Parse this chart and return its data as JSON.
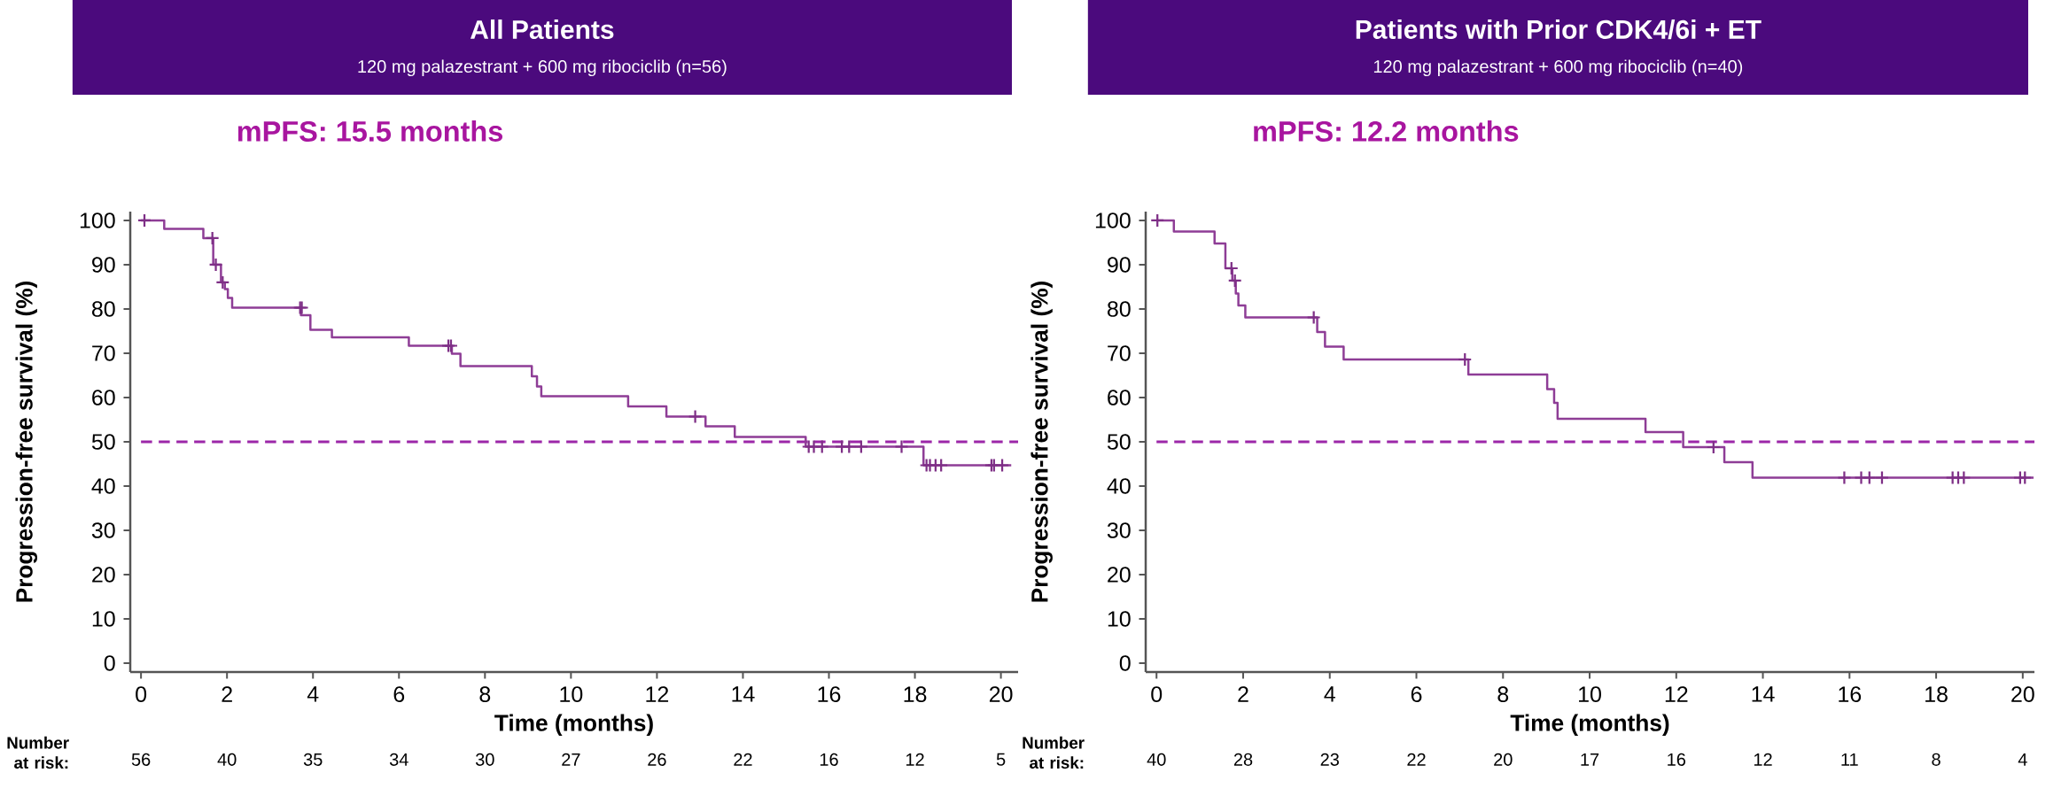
{
  "chart_data": [
    {
      "type": "step",
      "title": "All Patients",
      "subtitle": "120 mg palazestrant + 600 mg ribociclib (n=56)",
      "xlabel": "Time (months)",
      "ylabel": "Progression-free survival (%)",
      "xlim": [
        -0.25,
        20.4
      ],
      "ylim": [
        -2,
        102
      ],
      "xticks": [
        0,
        2,
        4,
        6,
        8,
        10,
        12,
        14,
        16,
        18,
        20
      ],
      "yticks": [
        0,
        10,
        20,
        30,
        40,
        50,
        60,
        70,
        80,
        90,
        100
      ],
      "series": [
        {
          "color": "#8e3d96",
          "x": [
            0,
            0.54,
            1.45,
            1.68,
            1.86,
            1.95,
            2.02,
            2.12,
            3.72,
            3.94,
            4.44,
            6.23,
            7.23,
            7.43,
            9.09,
            9.21,
            9.31,
            11.33,
            12.22,
            13.13,
            13.81,
            15.46,
            18.2,
            20.24
          ],
          "values": [
            100,
            98.1,
            96.0,
            90.0,
            86.0,
            84.5,
            82.5,
            80.3,
            78.6,
            75.3,
            73.6,
            71.7,
            69.9,
            67.1,
            64.8,
            62.5,
            60.3,
            58.0,
            55.7,
            53.5,
            51.1,
            48.9,
            44.7,
            44.7
          ]
        },
        {
          "type": "scatter",
          "marker": "cross",
          "color": "#7e2f86",
          "x": [
            0.08,
            1.66,
            1.74,
            1.9,
            3.7,
            3.74,
            7.15,
            7.21,
            12.89,
            15.53,
            15.65,
            15.84,
            16.3,
            16.47,
            16.75,
            17.69,
            18.27,
            18.35,
            18.48,
            18.61,
            19.78,
            19.84,
            20.03
          ],
          "values": [
            100,
            96.0,
            90.0,
            86.0,
            80.3,
            80.3,
            71.7,
            71.7,
            55.7,
            48.9,
            48.9,
            48.9,
            48.9,
            48.9,
            48.9,
            48.9,
            44.7,
            44.7,
            44.7,
            44.7,
            44.7,
            44.7,
            44.7
          ]
        }
      ],
      "ref_lines": [
        {
          "axis": "y",
          "value": 50,
          "color": "#9c27a8",
          "line_style": "dashed"
        }
      ],
      "annotations": [
        "mPFS: 15.5 months",
        "Number at risk:",
        "56",
        "40",
        "35",
        "34",
        "30",
        "27",
        "26",
        "22",
        "16",
        "12",
        "5"
      ]
    },
    {
      "type": "step",
      "title": "Patients with Prior CDK4/6i + ET",
      "subtitle": "120 mg palazestrant + 600 mg ribociclib (n=40)",
      "xlabel": "Time (months)",
      "ylabel": "Progression-free survival (%)",
      "xlim": [
        -0.25,
        20.27
      ],
      "ylim": [
        -2,
        102
      ],
      "xticks": [
        0,
        2,
        4,
        6,
        8,
        10,
        12,
        14,
        16,
        18,
        20
      ],
      "yticks": [
        0,
        10,
        20,
        30,
        40,
        50,
        60,
        70,
        80,
        90,
        100
      ],
      "series": [
        {
          "color": "#8e3d96",
          "x": [
            0,
            0.4,
            1.34,
            1.59,
            1.75,
            1.83,
            1.89,
            2.05,
            3.71,
            3.89,
            4.32,
            7.2,
            9.02,
            9.18,
            9.26,
            11.29,
            12.16,
            13.11,
            13.76,
            20.25
          ],
          "values": [
            100,
            97.5,
            94.8,
            89.2,
            86.4,
            83.5,
            80.8,
            78.1,
            74.8,
            71.5,
            68.6,
            65.2,
            61.9,
            58.8,
            55.2,
            52.2,
            48.8,
            45.4,
            41.9,
            41.9
          ]
        },
        {
          "type": "scatter",
          "marker": "cross",
          "color": "#7e2f86",
          "x": [
            0.02,
            1.73,
            1.81,
            3.63,
            7.12,
            12.86,
            15.88,
            16.27,
            16.46,
            16.75,
            18.38,
            18.51,
            18.64,
            19.94,
            20.05
          ],
          "values": [
            100,
            89.2,
            86.4,
            78.1,
            68.6,
            48.8,
            41.9,
            41.9,
            41.9,
            41.9,
            41.9,
            41.9,
            41.9,
            41.9,
            41.9
          ]
        }
      ],
      "ref_lines": [
        {
          "axis": "y",
          "value": 50,
          "color": "#9c27a8",
          "line_style": "dashed"
        }
      ],
      "annotations": [
        "mPFS: 12.2 months",
        "Number at risk:",
        "40",
        "28",
        "23",
        "22",
        "20",
        "17",
        "16",
        "12",
        "11",
        "8",
        "4"
      ]
    }
  ]
}
